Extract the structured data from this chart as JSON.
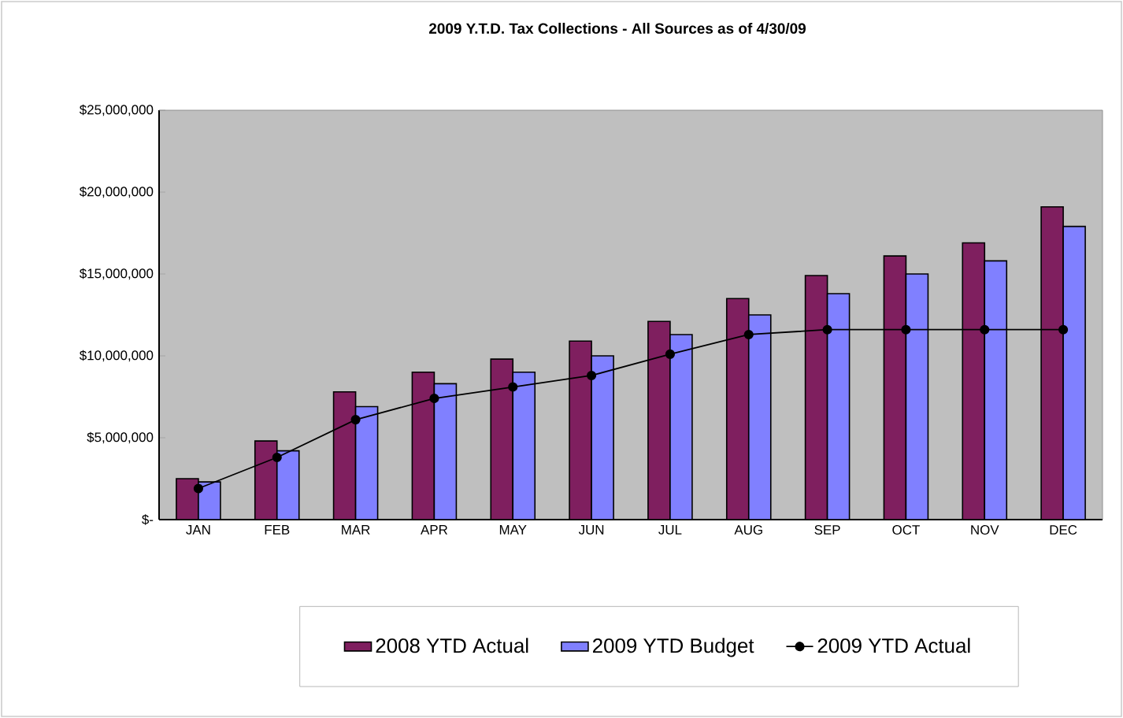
{
  "chart_data": {
    "type": "bar",
    "title": "2009 Y.T.D. Tax Collections - All Sources as of 4/30/09",
    "categories": [
      "JAN",
      "FEB",
      "MAR",
      "APR",
      "MAY",
      "JUN",
      "JUL",
      "AUG",
      "SEP",
      "OCT",
      "NOV",
      "DEC"
    ],
    "series": [
      {
        "name": "2008 YTD Actual",
        "color": "#7f1f5f",
        "values": [
          2500000,
          4800000,
          7800000,
          9000000,
          9800000,
          10900000,
          12100000,
          13500000,
          14900000,
          16100000,
          16900000,
          19100000
        ]
      },
      {
        "name": "2009 YTD Budget",
        "color": "#8080ff",
        "values": [
          2300000,
          4200000,
          6900000,
          8300000,
          9000000,
          10000000,
          11300000,
          12500000,
          13800000,
          15000000,
          15800000,
          17900000
        ]
      },
      {
        "name": "2009 YTD Actual",
        "type": "line",
        "color": "#000000",
        "marker": "circle",
        "values": [
          1900000,
          3800000,
          6100000,
          7400000,
          8100000,
          8800000,
          10100000,
          11300000,
          11600000,
          11600000,
          11600000,
          11600000
        ]
      }
    ],
    "ylim": [
      0,
      25000000
    ],
    "yticks": [
      {
        "value": 0,
        "label": "$-"
      },
      {
        "value": 5000000,
        "label": "$5,000,000"
      },
      {
        "value": 10000000,
        "label": "$10,000,000"
      },
      {
        "value": 15000000,
        "label": "$15,000,000"
      },
      {
        "value": 20000000,
        "label": "$20,000,000"
      },
      {
        "value": 25000000,
        "label": "$25,000,000"
      }
    ],
    "legend": "bottom"
  }
}
